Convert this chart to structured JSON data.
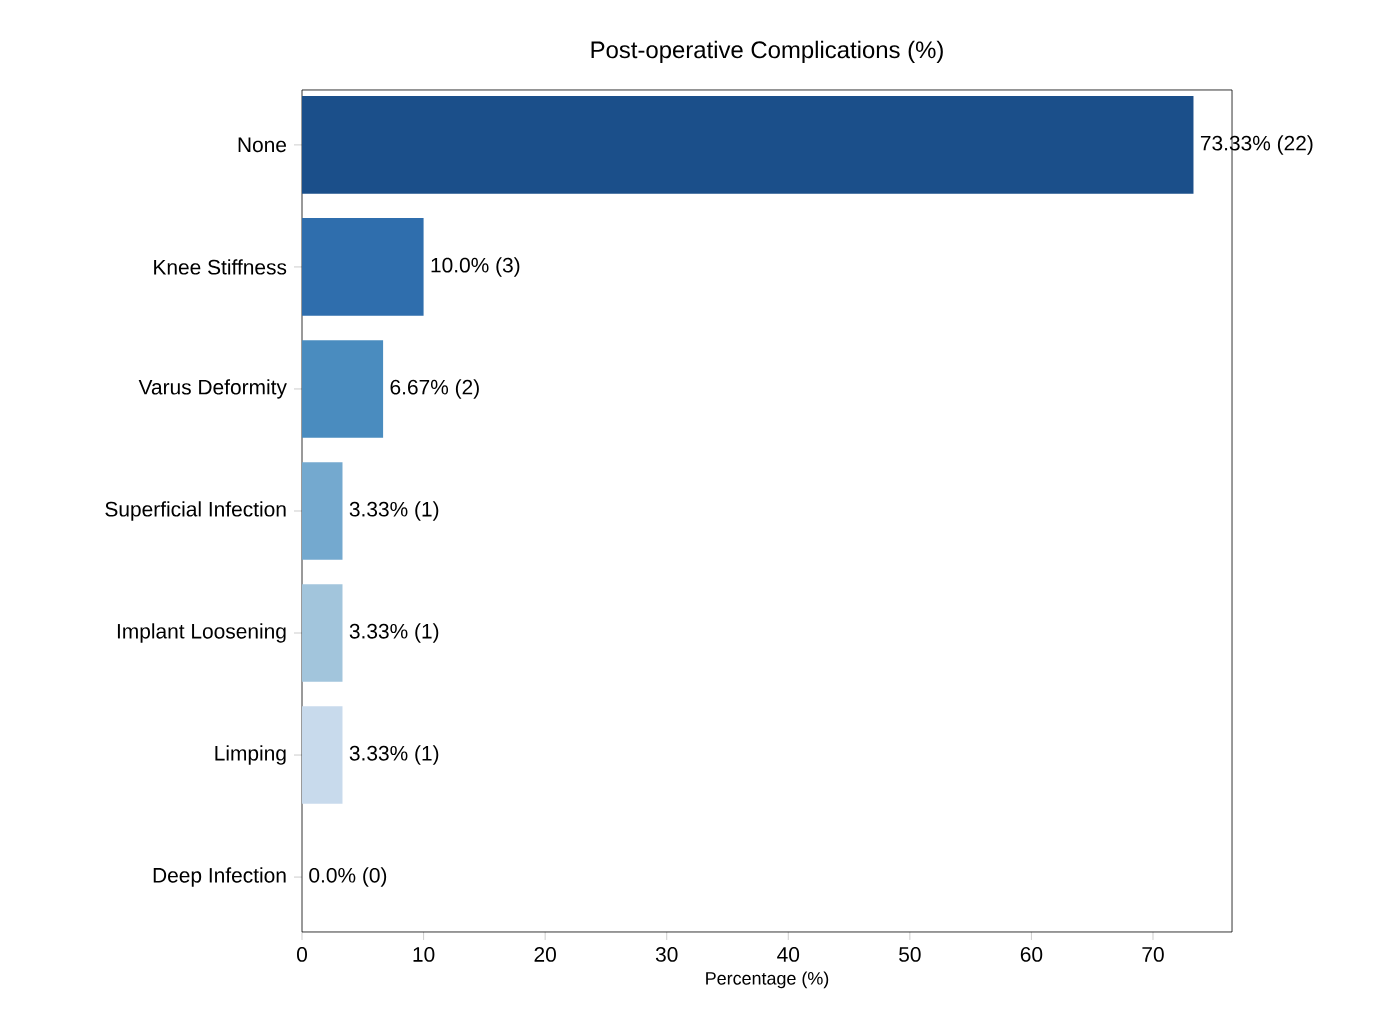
{
  "chart_data": {
    "type": "bar",
    "orientation": "horizontal",
    "title": "Post-operative Complications (%)",
    "xlabel": "Percentage (%)",
    "categories": [
      "None",
      "Knee Stiffness",
      "Varus Deformity",
      "Superficial Infection",
      "Implant Loosening",
      "Limping",
      "Deep Infection"
    ],
    "values": [
      73.33,
      10.0,
      6.67,
      3.33,
      3.33,
      3.33,
      0.0
    ],
    "value_labels": [
      "73.33% (22)",
      "10.0% (3)",
      "6.67% (2)",
      "3.33% (1)",
      "3.33% (1)",
      "3.33% (1)",
      "0.0% (0)"
    ],
    "colors": [
      "#1b4f8a",
      "#2f6ead",
      "#4a8cbf",
      "#74a9cf",
      "#a2c5dc",
      "#c8daec",
      "#e3eef8"
    ],
    "xlim": [
      0,
      76.5
    ],
    "xticks": [
      0,
      10,
      20,
      30,
      40,
      50,
      60,
      70
    ],
    "grid": false
  }
}
